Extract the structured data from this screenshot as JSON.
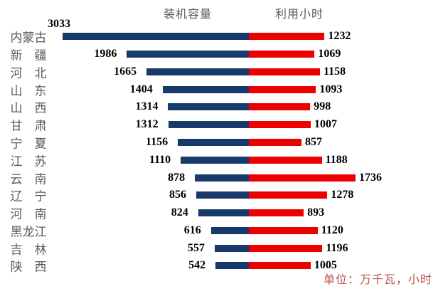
{
  "chart_data": {
    "type": "bar",
    "subtype": "tornado-diverging",
    "title": "",
    "categories": [
      "内蒙古",
      "新　疆",
      "河　北",
      "山　东",
      "山　西",
      "甘　肃",
      "宁　夏",
      "江　苏",
      "云　南",
      "辽　宁",
      "河　南",
      "黑龙江",
      "吉　林",
      "陕　西"
    ],
    "series": [
      {
        "name": "装机容量",
        "direction": "left",
        "color": "#173A6B",
        "values": [
          3033,
          1986,
          1665,
          1404,
          1314,
          1312,
          1156,
          1110,
          878,
          856,
          824,
          616,
          557,
          542
        ]
      },
      {
        "name": "利用小时",
        "direction": "right",
        "color": "#EC0000",
        "values": [
          1232,
          1069,
          1158,
          1093,
          998,
          1007,
          857,
          1188,
          1736,
          1278,
          893,
          1120,
          1196,
          1005
        ]
      }
    ],
    "unit_note": "单位：万千瓦，小时",
    "unit_note_color": "#C05050",
    "value_label_color": "#000000",
    "category_label_color": "#595959",
    "header_color": "#595959",
    "grid": false,
    "axes_visible": false,
    "legend_position": "top-headers",
    "value_labels": "outside-end"
  }
}
